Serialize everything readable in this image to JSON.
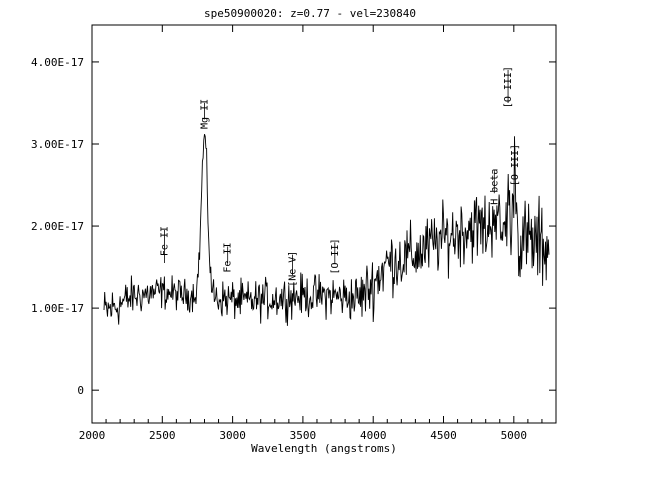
{
  "chart_data": {
    "type": "line",
    "title": "spe50900020: z=0.77 - vel=230840",
    "xlabel": "Wavelength (angstroms)",
    "ylabel": "",
    "xlim": [
      2000,
      5300
    ],
    "ylim": [
      -4e-18,
      4.45e-17
    ],
    "x_ticks": [
      2000,
      2500,
      3000,
      3500,
      4000,
      4500,
      5000
    ],
    "x_tick_labels": [
      "2000",
      "2500",
      "3000",
      "3500",
      "4000",
      "4500",
      "5000"
    ],
    "y_ticks": [
      0,
      1e-17,
      2e-17,
      3e-17,
      4e-17
    ],
    "y_tick_labels": [
      "0",
      "1.00E-17",
      "2.00E-17",
      "3.00E-17",
      "4.00E-17"
    ],
    "grid": false,
    "legend": "none",
    "color": "#000000",
    "spectrum": {
      "x_start": 2085,
      "x_end": 5250,
      "step": 5,
      "continuum": [
        [
          2085,
          9.5e-18
        ],
        [
          2200,
          1.05e-17
        ],
        [
          2300,
          1.15e-17
        ],
        [
          2500,
          1.2e-17
        ],
        [
          2700,
          1.15e-17
        ],
        [
          2760,
          1.2e-17
        ],
        [
          2900,
          1.12e-17
        ],
        [
          3100,
          1.08e-17
        ],
        [
          3300,
          1.12e-17
        ],
        [
          3500,
          1.15e-17
        ],
        [
          3700,
          1.15e-17
        ],
        [
          3900,
          1.12e-17
        ],
        [
          4000,
          1.3e-17
        ],
        [
          4100,
          1.55e-17
        ],
        [
          4300,
          1.65e-17
        ],
        [
          4500,
          1.85e-17
        ],
        [
          4700,
          2e-17
        ],
        [
          4900,
          1.95e-17
        ],
        [
          5100,
          1.8e-17
        ],
        [
          5250,
          1.75e-17
        ]
      ],
      "emission_lines": [
        {
          "center": 2800,
          "amplitude": 1.9e-17,
          "width": 22
        },
        {
          "center": 4861,
          "amplitude": 3e-18,
          "width": 12
        },
        {
          "center": 4959,
          "amplitude": 5.5e-18,
          "width": 8
        },
        {
          "center": 5007,
          "amplitude": 1.1e-17,
          "width": 8
        }
      ],
      "noise_amplitude": [
        [
          2085,
          2.2e-18
        ],
        [
          2300,
          1.8e-18
        ],
        [
          2700,
          1.4e-18
        ],
        [
          3000,
          1.8e-18
        ],
        [
          3800,
          2e-18
        ],
        [
          4000,
          2.8e-18
        ],
        [
          4500,
          3e-18
        ],
        [
          5000,
          3.8e-18
        ],
        [
          5250,
          4.2e-18
        ]
      ]
    },
    "line_labels": [
      {
        "text": "Fe II",
        "x": 2515,
        "y": 2e-17,
        "tick_to": 1.55e-17
      },
      {
        "text": "Mg II",
        "x": 2800,
        "y": 3.55e-17,
        "tick_to": 3.3e-17
      },
      {
        "text": "Fe II",
        "x": 2965,
        "y": 1.8e-17,
        "tick_to": 1.55e-17
      },
      {
        "text": "[Ne V]",
        "x": 3426,
        "y": 1.7e-17,
        "tick_to": 1.4e-17
      },
      {
        "text": "[O II]",
        "x": 3727,
        "y": 1.85e-17,
        "tick_to": 1.55e-17
      },
      {
        "text": "H beta",
        "x": 4861,
        "y": 2.7e-17,
        "tick_to": 2.4e-17
      },
      {
        "text": "[O III]",
        "x": 4959,
        "y": 3.95e-17,
        "tick_to": 3.5e-17
      },
      {
        "text": "[O III]",
        "x": 5007,
        "y": 3e-17,
        "tick_to": 2.7e-17
      }
    ]
  }
}
